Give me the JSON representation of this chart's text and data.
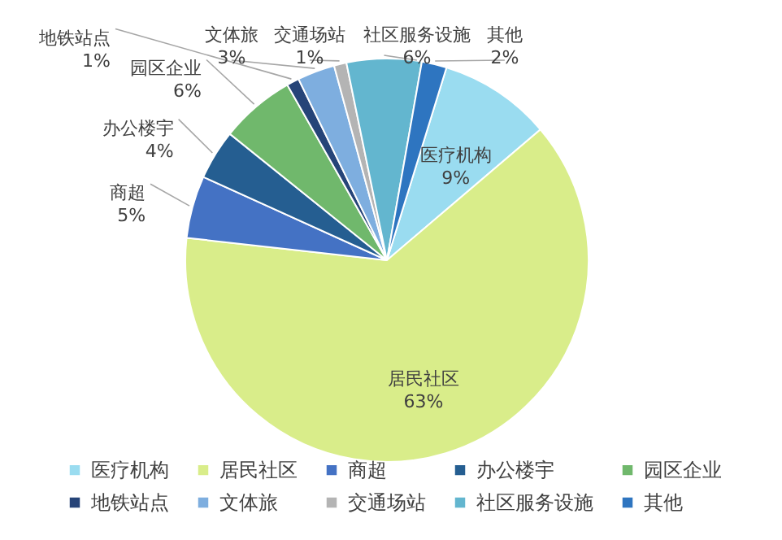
{
  "chart_data": {
    "type": "pie",
    "categories": [
      "医疗机构",
      "居民社区",
      "商超",
      "办公楼宇",
      "园区企业",
      "地铁站点",
      "文体旅",
      "交通场站",
      "社区服务设施",
      "其他"
    ],
    "values": [
      9,
      63,
      5,
      4,
      6,
      1,
      3,
      1,
      6,
      2
    ],
    "value_labels": [
      "9%",
      "63%",
      "5%",
      "4%",
      "6%",
      "1%",
      "3%",
      "1%",
      "6%",
      "2%"
    ],
    "colors": [
      "#9adcf0",
      "#d9ed8a",
      "#4472c4",
      "#255e91",
      "#70b86c",
      "#264478",
      "#7eaedf",
      "#b4b4b4",
      "#63b6cf",
      "#2e75c0"
    ],
    "legend": "bottom"
  }
}
